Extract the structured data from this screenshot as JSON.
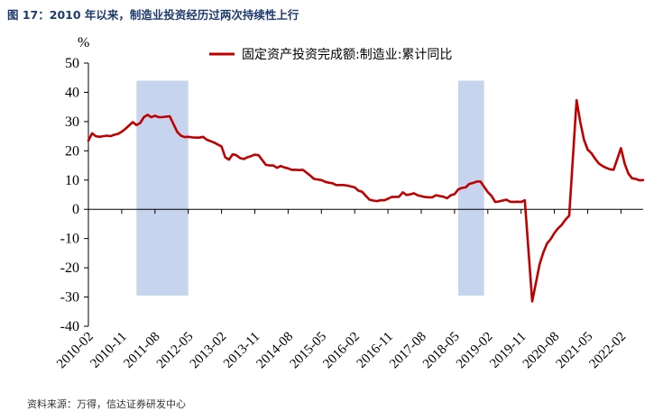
{
  "figure": {
    "title": "图 17：2010 年以来，制造业投资经历过两次持续性上行",
    "source": "资料来源：万得，信达证券研发中心"
  },
  "chart_data": {
    "type": "line",
    "ylabel": "%",
    "ylim": [
      -40,
      50
    ],
    "yticks": [
      "50",
      "40",
      "30",
      "20",
      "10",
      "0",
      "-10",
      "-20",
      "-30",
      "-40"
    ],
    "xticks": [
      "2010-02",
      "2010-11",
      "2011-08",
      "2012-05",
      "2013-02",
      "2013-11",
      "2014-08",
      "2015-05",
      "2016-02",
      "2016-11",
      "2017-08",
      "2018-05",
      "2019-02",
      "2019-11",
      "2020-08",
      "2021-05",
      "2022-02"
    ],
    "x_start": "2010-02",
    "x_end": "2022-08",
    "grid": false,
    "legend_position": "top",
    "shaded_regions": [
      {
        "start": "2011-03",
        "end": "2012-05",
        "ymin": -29.5,
        "ymax": 44
      },
      {
        "start": "2018-06",
        "end": "2019-01",
        "ymin": -29.5,
        "ymax": 44
      }
    ],
    "shade_color": "#c7d4ee",
    "series": [
      {
        "name": "固定资产投资完成额:制造业:累计同比",
        "color": "#c00000",
        "x": [
          "2010-02",
          "2010-03",
          "2010-04",
          "2010-05",
          "2010-06",
          "2010-07",
          "2010-08",
          "2010-09",
          "2010-10",
          "2010-11",
          "2010-12",
          "2011-02",
          "2011-03",
          "2011-04",
          "2011-05",
          "2011-06",
          "2011-07",
          "2011-08",
          "2011-09",
          "2011-10",
          "2011-11",
          "2011-12",
          "2012-02",
          "2012-03",
          "2012-04",
          "2012-05",
          "2012-06",
          "2012-07",
          "2012-08",
          "2012-09",
          "2012-10",
          "2012-11",
          "2012-12",
          "2013-02",
          "2013-03",
          "2013-04",
          "2013-05",
          "2013-06",
          "2013-07",
          "2013-08",
          "2013-09",
          "2013-10",
          "2013-11",
          "2013-12",
          "2014-02",
          "2014-03",
          "2014-04",
          "2014-05",
          "2014-06",
          "2014-07",
          "2014-08",
          "2014-09",
          "2014-10",
          "2014-11",
          "2014-12",
          "2015-02",
          "2015-03",
          "2015-04",
          "2015-05",
          "2015-06",
          "2015-07",
          "2015-08",
          "2015-09",
          "2015-10",
          "2015-11",
          "2015-12",
          "2016-02",
          "2016-03",
          "2016-04",
          "2016-05",
          "2016-06",
          "2016-07",
          "2016-08",
          "2016-09",
          "2016-10",
          "2016-11",
          "2016-12",
          "2017-02",
          "2017-03",
          "2017-04",
          "2017-05",
          "2017-06",
          "2017-07",
          "2017-08",
          "2017-09",
          "2017-10",
          "2017-11",
          "2017-12",
          "2018-02",
          "2018-03",
          "2018-04",
          "2018-05",
          "2018-06",
          "2018-07",
          "2018-08",
          "2018-09",
          "2018-10",
          "2018-11",
          "2018-12",
          "2019-02",
          "2019-03",
          "2019-04",
          "2019-05",
          "2019-06",
          "2019-07",
          "2019-08",
          "2019-09",
          "2019-10",
          "2019-11",
          "2019-12",
          "2020-02",
          "2020-03",
          "2020-04",
          "2020-05",
          "2020-06",
          "2020-07",
          "2020-08",
          "2020-09",
          "2020-10",
          "2020-11",
          "2020-12",
          "2021-02",
          "2021-03",
          "2021-04",
          "2021-05",
          "2021-06",
          "2021-07",
          "2021-08",
          "2021-09",
          "2021-10",
          "2021-11",
          "2021-12",
          "2022-02",
          "2022-03",
          "2022-04",
          "2022-05",
          "2022-06",
          "2022-07",
          "2022-08"
        ],
        "y": [
          23.5,
          26,
          25,
          24.8,
          25,
          25.2,
          25,
          25.5,
          25.8,
          26.5,
          27.5,
          29.8,
          28.8,
          29.5,
          31.5,
          32.3,
          31.5,
          32,
          31.5,
          31.5,
          31.7,
          31.8,
          26.5,
          25.2,
          24.7,
          24.8,
          24.6,
          24.5,
          24.5,
          24.8,
          23.8,
          23.3,
          22.8,
          21.5,
          17.8,
          17,
          18.8,
          18.5,
          17.5,
          17.2,
          17.8,
          18.2,
          18.7,
          18.5,
          15.2,
          15,
          15,
          14.2,
          14.8,
          14.3,
          14,
          13.5,
          13.5,
          13.4,
          13.5,
          11.5,
          10.4,
          10.2,
          10,
          9.4,
          9.1,
          8.9,
          8.3,
          8.3,
          8.3,
          8.1,
          7.5,
          6.4,
          6,
          4.6,
          3.3,
          3,
          2.8,
          3.1,
          3.1,
          3.6,
          4.2,
          4.3,
          5.8,
          4.9,
          5.1,
          5.5,
          4.8,
          4.5,
          4.2,
          4.1,
          4.1,
          4.8,
          4.3,
          3.8,
          4.8,
          5.2,
          6.8,
          7.3,
          7.5,
          8.7,
          9,
          9.5,
          9.5,
          5.9,
          4.6,
          2.5,
          2.7,
          3,
          3.3,
          2.6,
          2.5,
          2.6,
          2.5,
          3.1,
          -31.5,
          -25.2,
          -18.8,
          -14.8,
          -11.7,
          -10.2,
          -8.1,
          -6.5,
          -5.3,
          -3.5,
          -2.2,
          37.3,
          29.8,
          23.8,
          20.4,
          19.2,
          17.3,
          15.7,
          14.8,
          14.2,
          13.7,
          13.5,
          20.9,
          15.6,
          12.2,
          10.6,
          10.4,
          9.9,
          10
        ]
      }
    ]
  }
}
